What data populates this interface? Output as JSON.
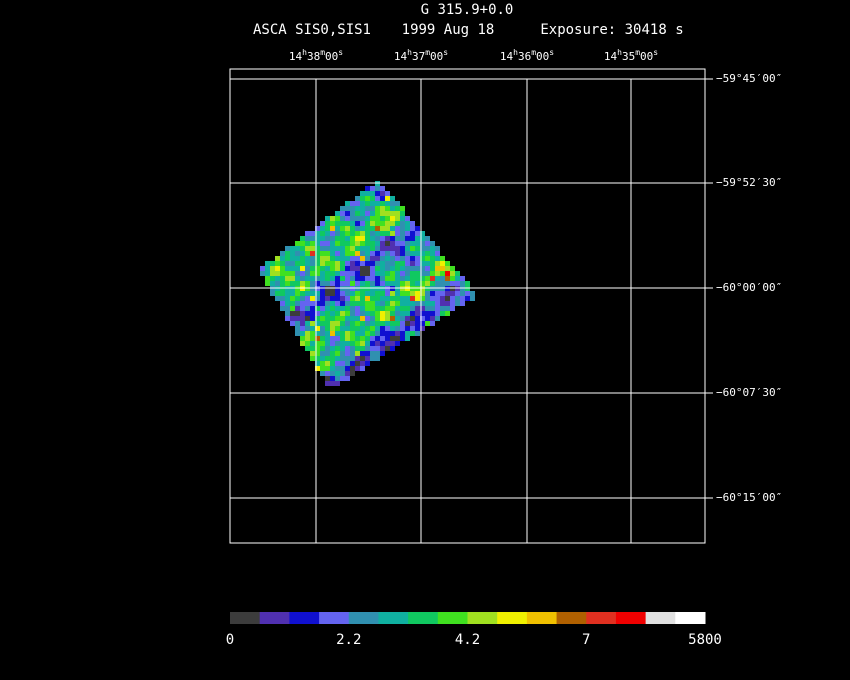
{
  "header": {
    "title": "G 315.9+0.0",
    "instrument": "ASCA SIS0,SIS1",
    "date": "1999 Aug 18",
    "exposure": "Exposure: 30418 s"
  },
  "ra_ticks": [
    "14h38m00s",
    "14h37m00s",
    "14h36m00s",
    "14h35m00s"
  ],
  "dec_ticks": [
    "−59°45′00″",
    "−59°52′30″",
    "−60°00′00″",
    "−60°07′30″",
    "−60°15′00″"
  ],
  "colorbar": {
    "colors": [
      "#3c3c3c",
      "#5030b0",
      "#1010d0",
      "#6464f0",
      "#3090b0",
      "#10b0a0",
      "#10c860",
      "#40e020",
      "#a0e020",
      "#f0f000",
      "#f0c000",
      "#b06000",
      "#e03020",
      "#f00000",
      "#e0e0e0",
      "#ffffff"
    ],
    "labels": [
      "0",
      "2.2",
      "4.2",
      "7",
      "5800"
    ]
  }
}
